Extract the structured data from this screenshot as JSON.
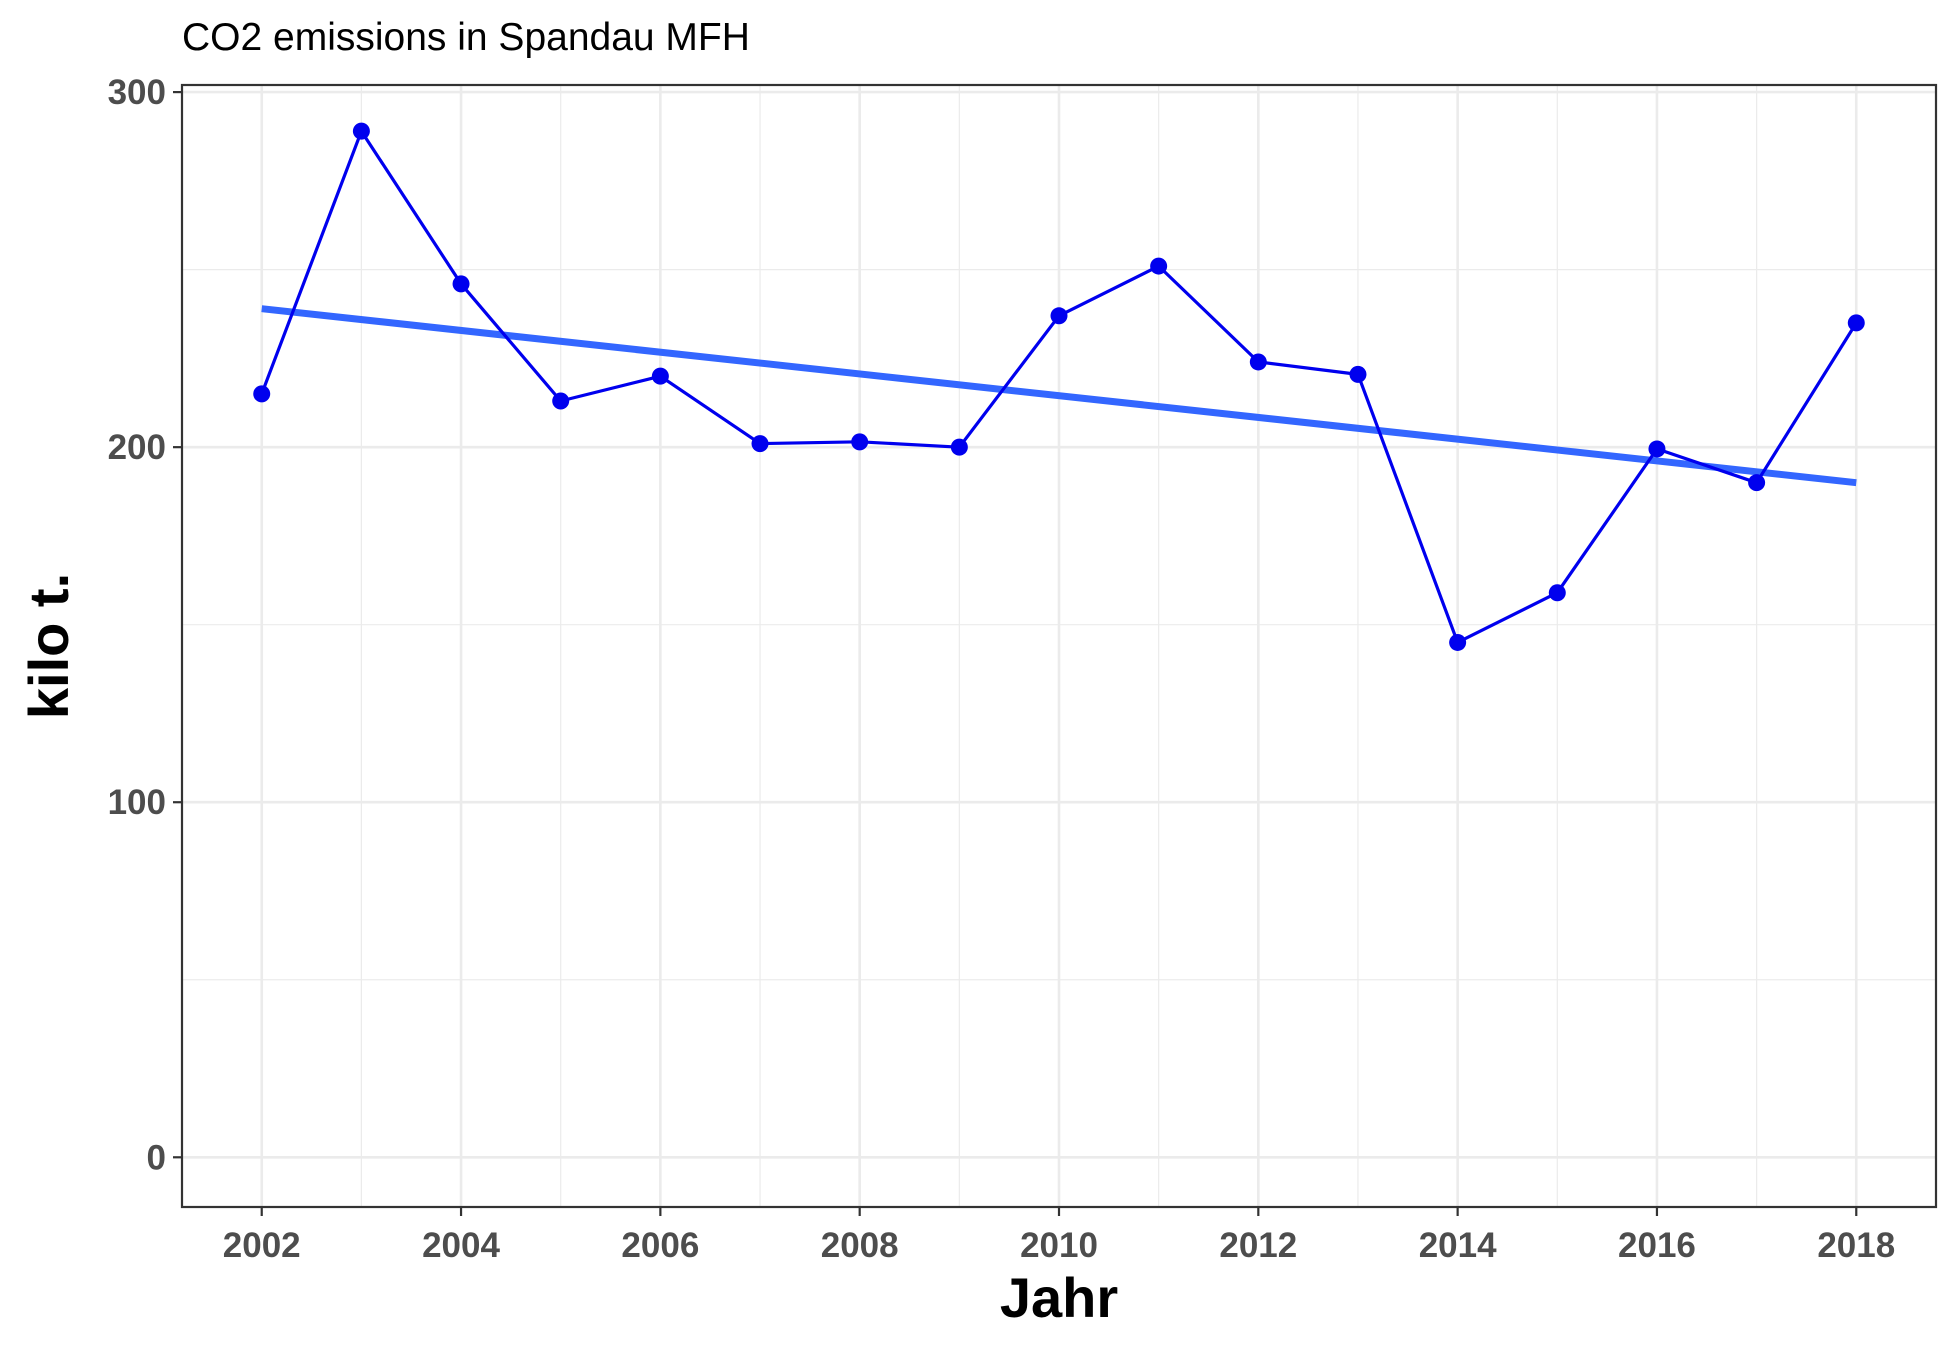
{
  "chart_data": {
    "type": "line",
    "title": "CO2 emissions in Spandau MFH",
    "xlabel": "Jahr",
    "ylabel": "kilo t.",
    "xlim": [
      2001.2,
      2018.8
    ],
    "ylim": [
      -14,
      302
    ],
    "x_ticks": [
      2002,
      2004,
      2006,
      2008,
      2010,
      2012,
      2014,
      2016,
      2018
    ],
    "y_ticks": [
      0,
      100,
      200,
      300
    ],
    "x_minor_ticks": [
      2003,
      2005,
      2007,
      2009,
      2011,
      2013,
      2015,
      2017
    ],
    "y_minor_ticks": [
      50,
      150,
      250
    ],
    "grid": true,
    "series": [
      {
        "x": [
          2002,
          2003,
          2004,
          2005,
          2006,
          2007,
          2008,
          2009,
          2010,
          2011,
          2012,
          2013,
          2014,
          2015,
          2016,
          2017,
          2018
        ],
        "values": [
          215,
          289,
          246,
          213,
          220,
          201,
          201.5,
          200,
          237,
          251,
          224,
          220.5,
          145,
          159,
          199.5,
          190,
          235
        ],
        "color": "#0000EE"
      }
    ],
    "trend_line": {
      "x": [
        2002,
        2018
      ],
      "values": [
        239,
        190
      ],
      "color": "#3366FF"
    }
  }
}
